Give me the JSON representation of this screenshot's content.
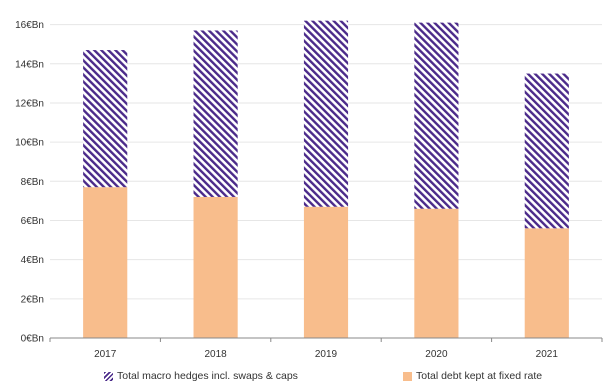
{
  "chart_data": {
    "type": "bar",
    "stacked": true,
    "categories": [
      "2017",
      "2018",
      "2019",
      "2020",
      "2021"
    ],
    "series": [
      {
        "name": "Total debt kept at fixed rate",
        "values": [
          7.7,
          7.2,
          6.7,
          6.6,
          5.6
        ]
      },
      {
        "name": "Total macro hedges incl. swaps & caps",
        "values": [
          7.0,
          8.5,
          9.5,
          9.5,
          7.9
        ]
      }
    ],
    "yticks": [
      "0€Bn",
      "2€Bn",
      "4€Bn",
      "6€Bn",
      "8€Bn",
      "10€Bn",
      "12€Bn",
      "14€Bn",
      "16€Bn"
    ],
    "ylim": [
      0,
      17
    ],
    "grid": true,
    "legend_position": "bottom"
  },
  "colors": {
    "debt_fill": "#f8bd8c",
    "hedge_stripe": "#4b2a8a",
    "grid": "#e6e6e6",
    "axis": "#888888"
  },
  "legend": {
    "hedges": "Total macro hedges incl. swaps & caps",
    "debt": "Total debt kept at fixed rate"
  }
}
